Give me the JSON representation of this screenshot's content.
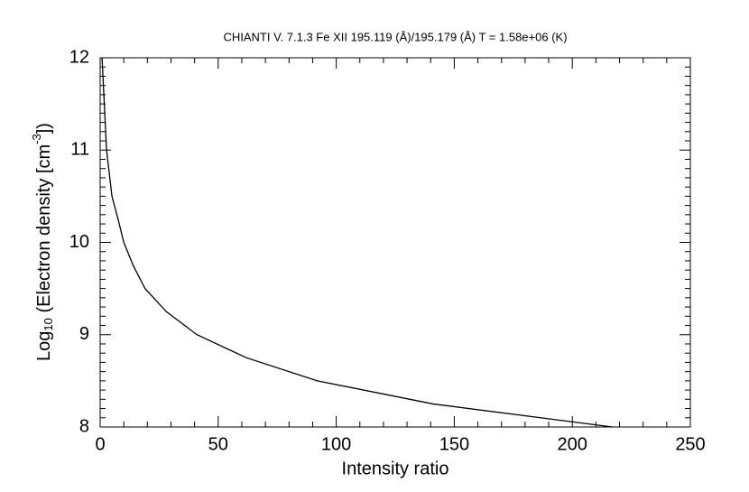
{
  "chart_data": {
    "type": "line",
    "title": "CHIANTI V. 7.1.3 Fe XII 195.119 (Å)/195.179 (Å)  T =  1.58e+06 (K)",
    "x_label": "Intensity ratio",
    "y_label_parts": [
      "Log",
      "10",
      " (Electron density [cm",
      "-3",
      "])"
    ],
    "x": [
      0.8,
      2.7,
      5,
      7.6,
      10,
      14,
      19,
      28,
      41,
      62,
      92,
      141,
      217
    ],
    "series": [
      {
        "color": "#000000",
        "values": [
          12,
          11,
          10.5,
          10.25,
          10,
          9.75,
          9.5,
          9.25,
          9,
          8.75,
          8.5,
          8.25,
          8
        ]
      }
    ],
    "xlim": [
      0,
      250
    ],
    "xticks": [
      0,
      50,
      100,
      150,
      200,
      250
    ],
    "ylim": [
      8,
      12
    ],
    "yticks": [
      8,
      9,
      10,
      11,
      12
    ],
    "x_minor": 5,
    "y_minor": 10
  }
}
